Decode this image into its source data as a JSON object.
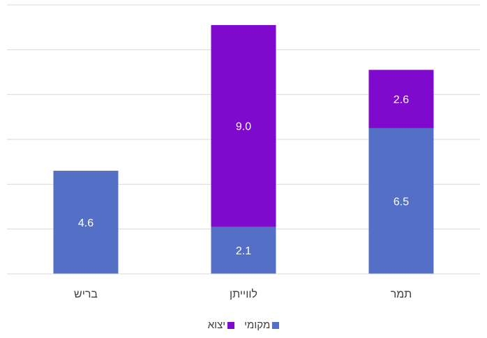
{
  "chart_data": {
    "type": "bar",
    "stacked": true,
    "title": "",
    "xlabel": "",
    "ylabel": "",
    "ylim": [
      0,
      12
    ],
    "grid": true,
    "legend_position": "bottom",
    "categories": [
      "בריש",
      "לווייתן",
      "תמר"
    ],
    "series": [
      {
        "name": "מקומי",
        "color": "#5470C6",
        "values": [
          4.6,
          2.1,
          6.5
        ]
      },
      {
        "name": "יצוא",
        "color": "#8009CE",
        "values": [
          0,
          9.0,
          2.6
        ]
      }
    ]
  }
}
